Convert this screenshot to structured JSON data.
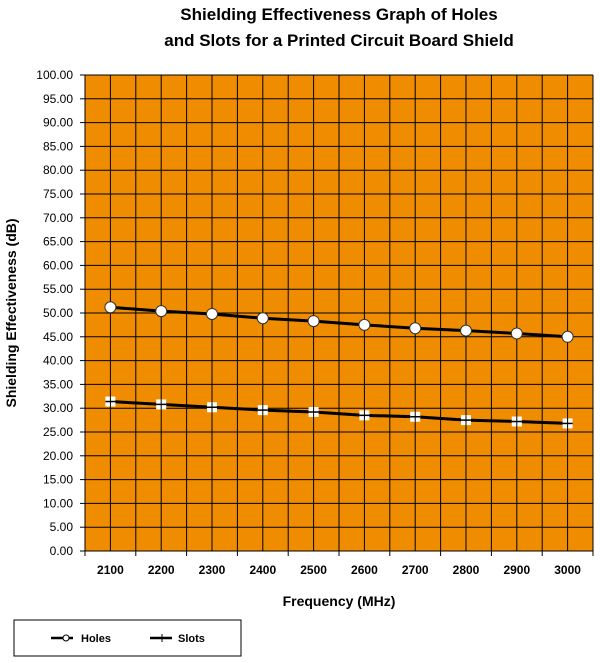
{
  "chart_data": {
    "type": "line",
    "title_line1": "Shielding Effectiveness Graph of Holes",
    "title_line2": "and Slots for a Printed Circuit Board Shield",
    "xlabel": "Frequency (MHz)",
    "ylabel": "Shielding Effectiveness (dB)",
    "categories": [
      "2100",
      "2200",
      "2300",
      "2400",
      "2500",
      "2600",
      "2700",
      "2800",
      "2900",
      "3000"
    ],
    "ylim": [
      0,
      100
    ],
    "ystep": 5,
    "grid": true,
    "plot_background": "#F08C00",
    "legend_position": "bottom-left",
    "series": [
      {
        "name": "Holes",
        "marker": "circle",
        "values": [
          51.2,
          50.4,
          49.8,
          48.9,
          48.3,
          47.5,
          46.8,
          46.3,
          45.7,
          45.0
        ]
      },
      {
        "name": "Slots",
        "marker": "cross-square",
        "values": [
          31.4,
          30.8,
          30.2,
          29.6,
          29.2,
          28.5,
          28.2,
          27.5,
          27.2,
          26.8
        ]
      }
    ]
  }
}
